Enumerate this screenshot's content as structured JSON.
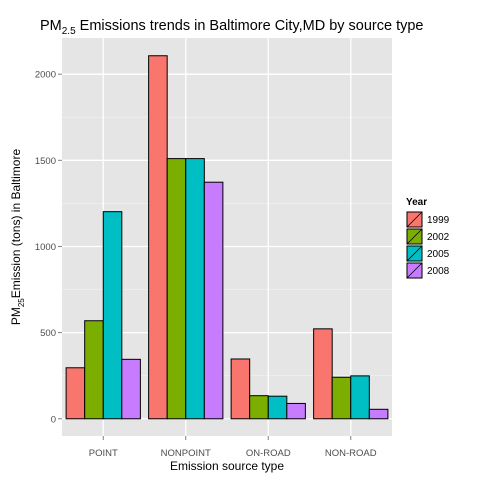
{
  "chart_data": {
    "type": "bar",
    "title": {
      "prefix": "PM",
      "subscript": "2.5",
      "suffix": " Emissions trends in Baltimore City,MD by source type"
    },
    "xlabel": "Emission source type",
    "ylabel": {
      "prefix": "PM",
      "subscript": "25",
      "suffix": "Emission (tons) in Baltimore"
    },
    "categories": [
      "POINT",
      "NONPOINT",
      "ON-ROAD",
      "NON-ROAD"
    ],
    "series": [
      {
        "name": "1999",
        "color": "#F8766D",
        "values": [
          296,
          2107,
          347,
          522
        ]
      },
      {
        "name": "2002",
        "color": "#7CAE00",
        "values": [
          569,
          1510,
          134,
          241
        ]
      },
      {
        "name": "2005",
        "color": "#00BFC4",
        "values": [
          1202,
          1510,
          131,
          249
        ]
      },
      {
        "name": "2008",
        "color": "#C77CFF",
        "values": [
          345,
          1373,
          89,
          55
        ]
      }
    ],
    "yticks": [
      0,
      500,
      1000,
      1500,
      2000
    ],
    "ylim": [
      -100,
      2210
    ],
    "legend": {
      "title": "Year",
      "position": "right"
    },
    "grid": true,
    "background": "#E5E5E5"
  }
}
